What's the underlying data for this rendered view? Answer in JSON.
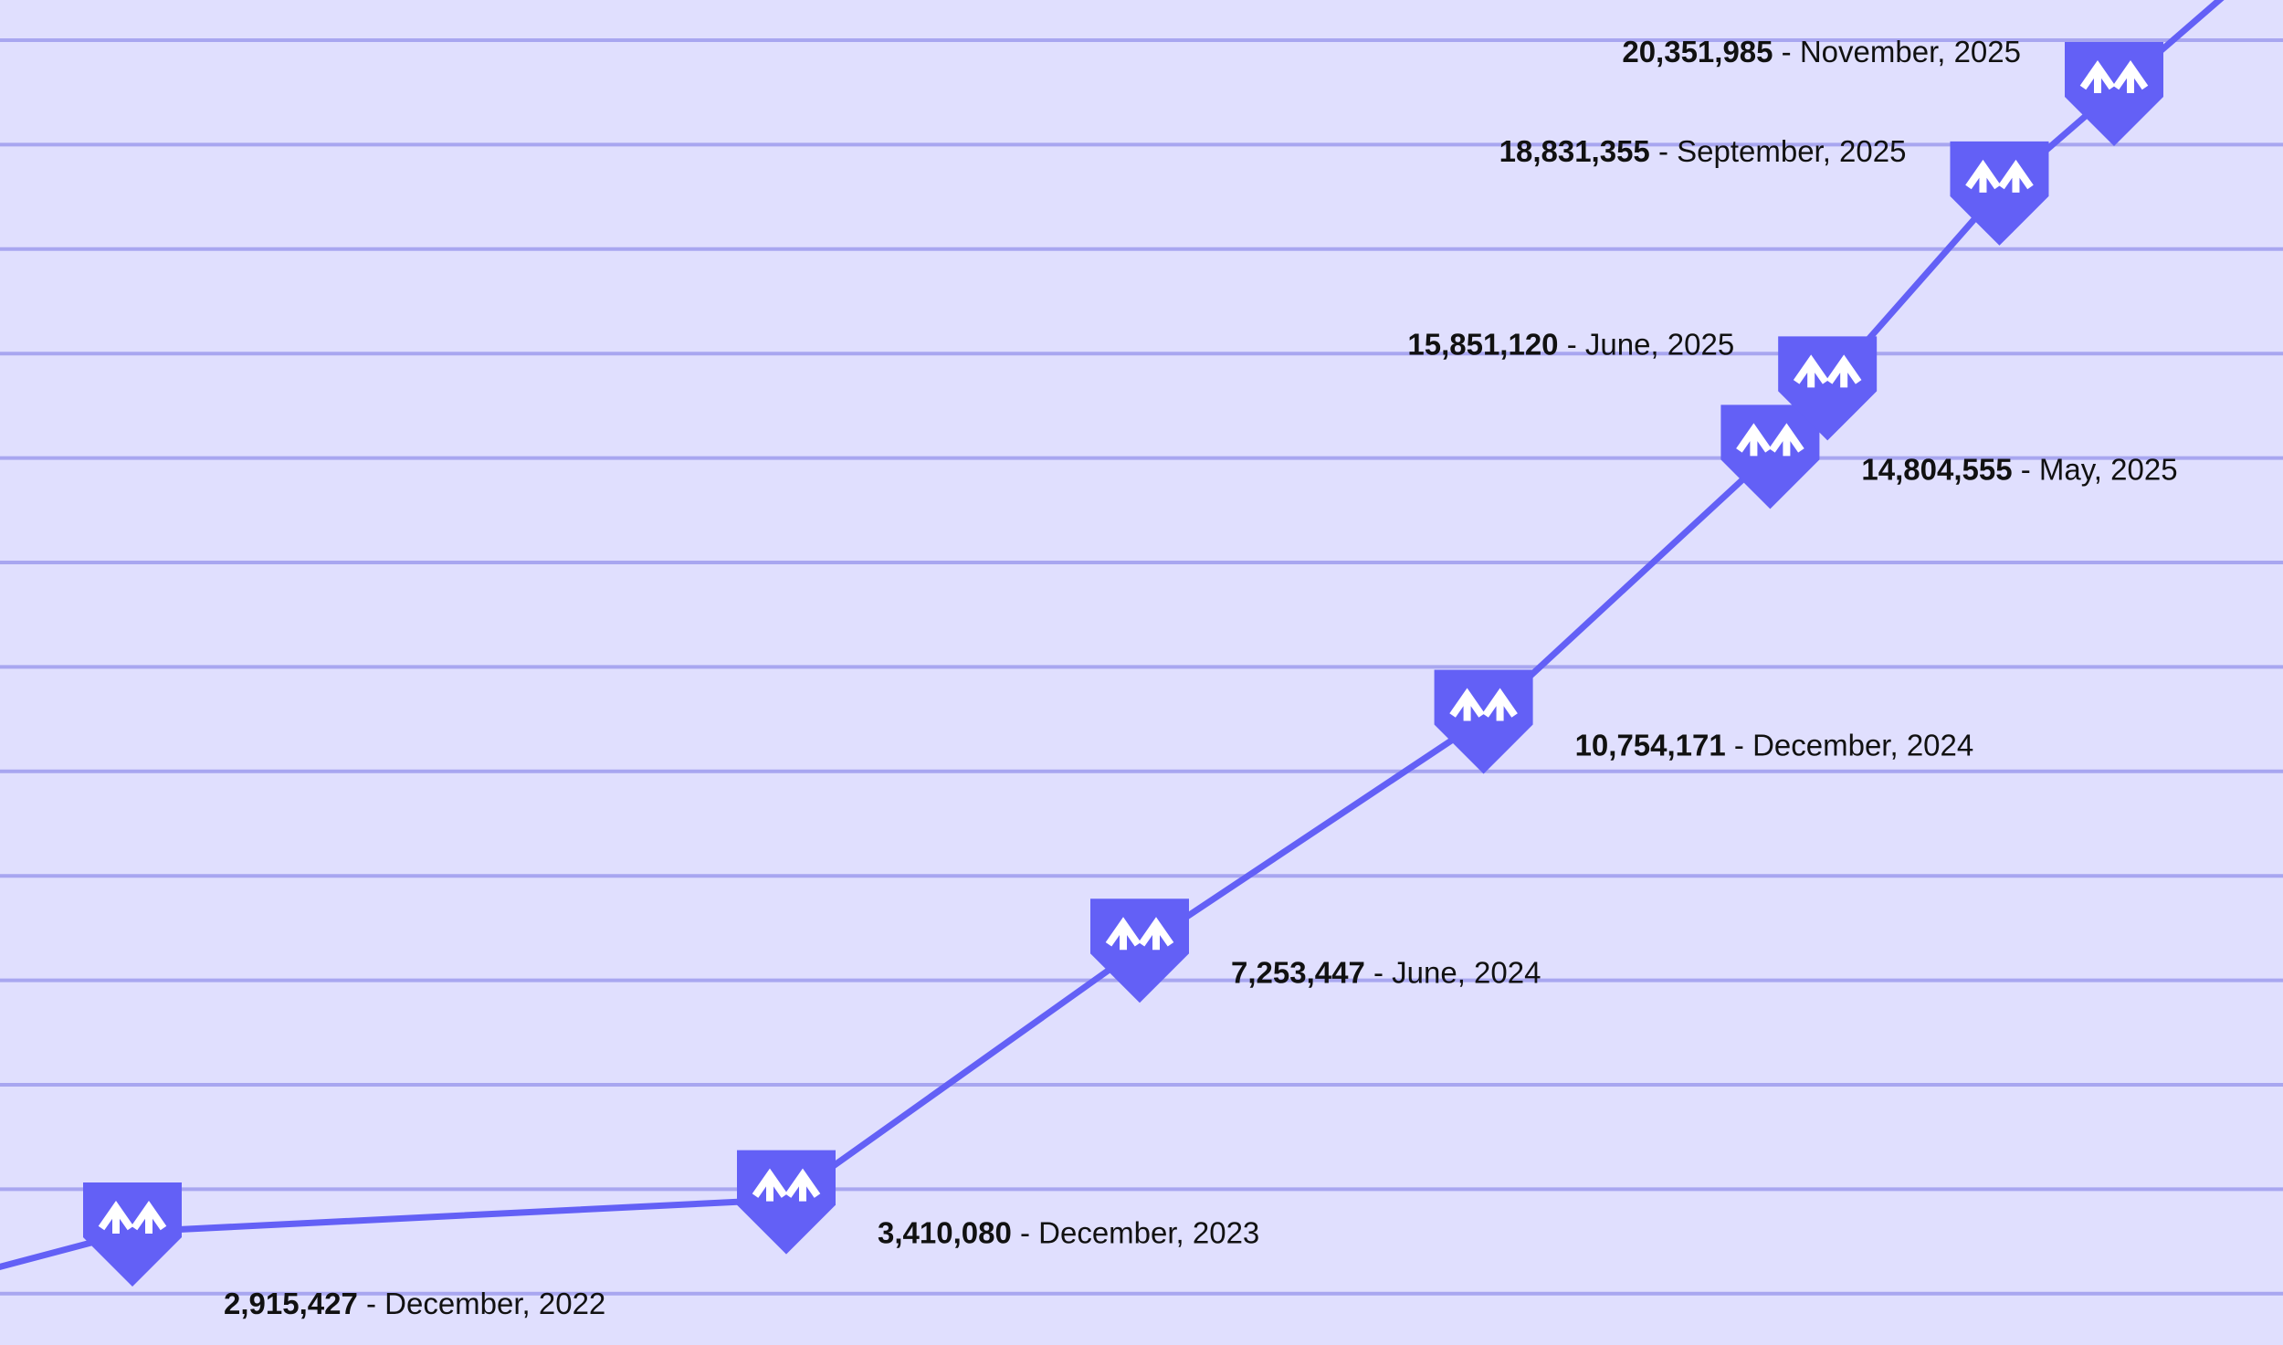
{
  "chart_data": {
    "type": "line",
    "title": "",
    "xlabel": "",
    "ylabel": "",
    "grid": true,
    "legend": "none",
    "marker_icon": "m-arrows-logo-icon",
    "colors": {
      "background": "#e0dffe",
      "line": "#6360f6",
      "grid": "#a8a6f0",
      "marker_glyph": "#ffffff",
      "label": "#111111"
    },
    "points": [
      {
        "date": "2022-12",
        "value": 2915427,
        "value_label": "2,915,427",
        "date_label": "December, 2022"
      },
      {
        "date": "2023-12",
        "value": 3410080,
        "value_label": "3,410,080",
        "date_label": "December, 2023"
      },
      {
        "date": "2024-06",
        "value": 7253447,
        "value_label": "7,253,447",
        "date_label": "June, 2024"
      },
      {
        "date": "2024-12",
        "value": 10754171,
        "value_label": "10,754,171",
        "date_label": "December, 2024"
      },
      {
        "date": "2025-05",
        "value": 14804555,
        "value_label": "14,804,555",
        "date_label": "May, 2025"
      },
      {
        "date": "2025-06",
        "value": 15851120,
        "value_label": "15,851,120",
        "date_label": "June, 2025"
      },
      {
        "date": "2025-09",
        "value": 18831355,
        "value_label": "18,831,355",
        "date_label": "September, 2025"
      },
      {
        "date": "2025-11",
        "value": 20351985,
        "value_label": "20,351,985",
        "date_label": "November, 2025"
      }
    ]
  }
}
